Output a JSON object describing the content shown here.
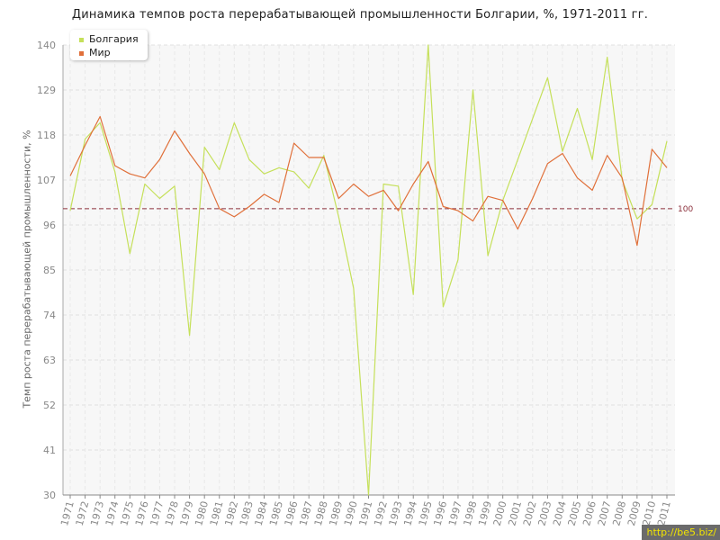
{
  "chart_data": {
    "type": "line",
    "title": "Динамика темпов роста перерабатывающей промышленности Болгарии, %, 1971-2011 гг.",
    "ylabel": "Темп роста перерабатывающей промышленности, %",
    "xlabel": "",
    "ylim": [
      30,
      140
    ],
    "yticks": [
      "30",
      "41",
      "52",
      "63",
      "74",
      "85",
      "96",
      "107",
      "118",
      "129",
      "140"
    ],
    "categories": [
      "1971",
      "1972",
      "1973",
      "1974",
      "1975",
      "1976",
      "1977",
      "1978",
      "1979",
      "1980",
      "1981",
      "1982",
      "1983",
      "1984",
      "1985",
      "1986",
      "1987",
      "1988",
      "1989",
      "1990",
      "1991",
      "1992",
      "1993",
      "1994",
      "1995",
      "1996",
      "1997",
      "1998",
      "1999",
      "2000",
      "2001",
      "2002",
      "2003",
      "2004",
      "2005",
      "2006",
      "2007",
      "2008",
      "2009",
      "2010",
      "2011"
    ],
    "series": [
      {
        "name": "Болгария",
        "color": "#c5e05a",
        "values": [
          99.5,
          117,
          121,
          109,
          89,
          106,
          102.5,
          105.5,
          69,
          115,
          109.5,
          121,
          112,
          108.5,
          110,
          109,
          105,
          113,
          98,
          80.5,
          30,
          106,
          105.5,
          79,
          140,
          76,
          87.5,
          129,
          88.5,
          102,
          112,
          122,
          132,
          114,
          124.5,
          112,
          137,
          107,
          97.5,
          101,
          116.5
        ]
      },
      {
        "name": "Мир",
        "color": "#e0703a",
        "values": [
          108,
          115.5,
          122.5,
          110.5,
          108.5,
          107.5,
          112,
          119,
          113.5,
          108.5,
          100,
          98,
          100.5,
          103.5,
          101.5,
          116,
          112.5,
          112.5,
          102.5,
          106,
          103,
          104.5,
          99.5,
          106,
          111.5,
          100.5,
          99.5,
          97,
          103,
          102,
          95,
          102.5,
          111,
          113.5,
          107.5,
          104.5,
          113,
          107.5,
          91,
          114.5,
          110
        ]
      }
    ],
    "reference_line": {
      "value": 100,
      "label": "100",
      "color": "#8b2f3b"
    },
    "grid": true,
    "legend": "top-left"
  },
  "watermark": "http://be5.biz/"
}
